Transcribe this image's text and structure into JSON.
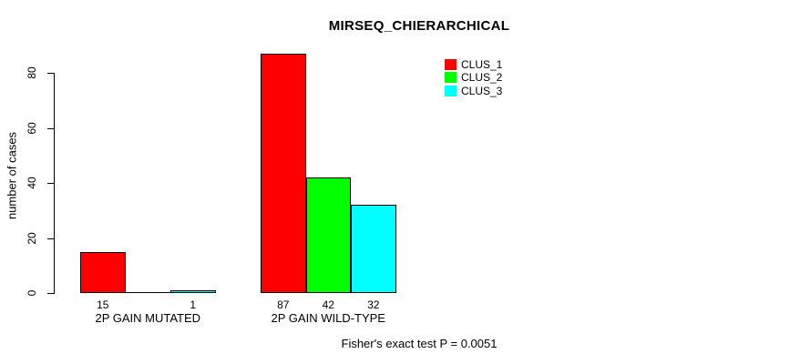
{
  "chart_data": {
    "type": "bar",
    "title": "MIRSEQ_CHIERARCHICAL",
    "ylabel": "number of cases",
    "xlabel": "",
    "ylim": [
      0,
      87
    ],
    "yticks": [
      0,
      20,
      40,
      60,
      80
    ],
    "grid": false,
    "categories": [
      "2P GAIN MUTATED",
      "2P GAIN WILD-TYPE"
    ],
    "series": [
      {
        "name": "CLUS_1",
        "color": "#ff0000",
        "values": [
          15,
          87
        ]
      },
      {
        "name": "CLUS_2",
        "color": "#00ff00",
        "values": [
          0,
          42
        ]
      },
      {
        "name": "CLUS_3",
        "color": "#00ffff",
        "values": [
          1,
          32
        ]
      }
    ],
    "bar_value_labels_shown": [
      "15",
      "1",
      "87",
      "42",
      "32"
    ],
    "bar_border_color": "#000000",
    "legend_position": "top-right",
    "annotation": "Fisher's exact test P = 0.0051"
  }
}
